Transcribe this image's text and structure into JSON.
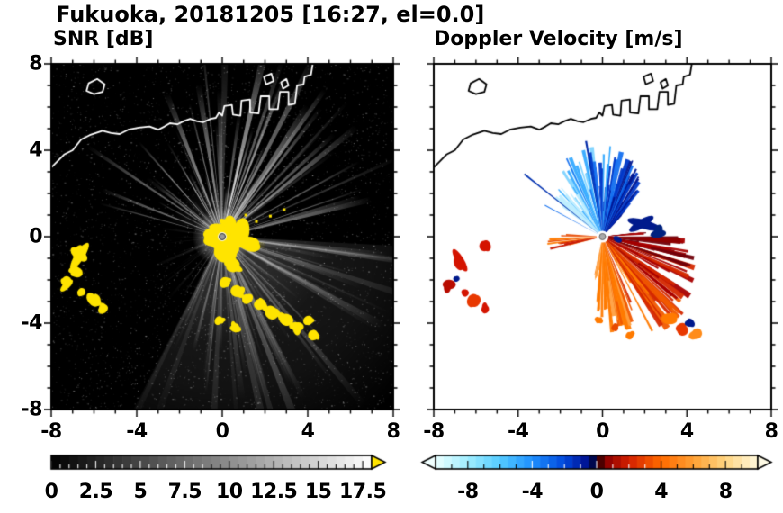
{
  "title": "Fukuoka, 20181205 [16:27, el=0.0]",
  "header": {
    "station": "Fukuoka",
    "date": "20181205",
    "time": "16:27",
    "elevation": "el=0.0"
  },
  "panels": [
    {
      "label": "SNR [dB]"
    },
    {
      "label": "Doppler Velocity [m/s]"
    }
  ],
  "chart_data": [
    {
      "type": "heatmap",
      "subtype": "radar-ppi",
      "title": "SNR [dB]",
      "xlim": [
        -8,
        8
      ],
      "ylim": [
        -8,
        8
      ],
      "xticks": [
        -8,
        -4,
        0,
        4,
        8
      ],
      "xtick_labels": [
        "-8",
        "-4",
        "0",
        "4",
        "8"
      ],
      "yticks": [
        8,
        4,
        0,
        -4,
        -8
      ],
      "ytick_labels": [
        "8",
        "4",
        "0",
        "-4",
        "-8"
      ],
      "minor_tick_step": 1,
      "background": "#000000",
      "colorbar": {
        "orientation": "horizontal",
        "min": 0,
        "max": 18,
        "segment_step": 0.5,
        "minor_tick_step": 0.5,
        "ticks": [
          0,
          2.5,
          5,
          7.5,
          10,
          12.5,
          15,
          17.5
        ],
        "tick_labels": [
          "0",
          "2.5",
          "5",
          "7.5",
          "10",
          "12.5",
          "15",
          "17.5"
        ],
        "over_arrow_color": "#ffe400"
      },
      "features": {
        "noise_density": 6500,
        "base_glow": [
          {
            "az": 0,
            "half": 70,
            "r": 2.6,
            "alpha": 0.1
          },
          {
            "az": 150,
            "half": 57,
            "r": 11,
            "alpha": 0.13
          },
          {
            "az": 150,
            "half": 57,
            "r": 5,
            "alpha": 0.1
          }
        ],
        "beam_fans": [
          {
            "az_min": -75,
            "az_max": 78,
            "count": 60,
            "r_min": 2.2,
            "r_max": 9.5,
            "alpha_min": 0.25,
            "alpha_max": 0.9
          },
          {
            "az_min": 95,
            "az_max": 208,
            "count": 85,
            "r_min": 2.5,
            "r_max": 11.5,
            "alpha_min": 0.06,
            "alpha_max": 0.4
          },
          {
            "az_min": 215,
            "az_max": 258,
            "count": 12,
            "r_min": 1.2,
            "r_max": 4.5,
            "alpha_min": 0.05,
            "alpha_max": 0.25
          },
          {
            "az_min": 262,
            "az_max": 292,
            "count": 8,
            "r_min": 1,
            "r_max": 3,
            "alpha_min": 0.05,
            "alpha_max": 0.3
          }
        ],
        "spikes": [
          {
            "az": 205,
            "half": 0.5,
            "r": 4.3,
            "alpha": 0.55
          },
          {
            "az": 214,
            "half": 0.45,
            "r": 3.2,
            "alpha": 0.4
          },
          {
            "az": 188,
            "half": 0.5,
            "r": 3.6,
            "alpha": 0.5
          },
          {
            "az": 180,
            "half": 0.4,
            "r": 2.6,
            "alpha": 0.45
          }
        ],
        "strong_echo_color": "#ffe400",
        "strong_echo_blobs": [
          [
            0.55,
            0,
            0.95,
            0.5
          ],
          [
            1.2,
            -0.3,
            0.55,
            0.3
          ],
          [
            0.25,
            -0.75,
            0.5,
            0.65
          ],
          [
            0.5,
            -1.35,
            0.3,
            0.55
          ],
          [
            -0.35,
            -0.25,
            0.5,
            0.35
          ],
          [
            -0.6,
            0.15,
            0.3,
            0.25
          ],
          [
            0.2,
            0.45,
            0.55,
            0.3
          ]
        ],
        "echo_streak": {
          "az": 102,
          "half": 4,
          "r": 2.1
        },
        "specks": [
          [
            1.6,
            0.7
          ],
          [
            2.25,
            0.95
          ],
          [
            2.9,
            1.25
          ],
          [
            1.1,
            1.0
          ]
        ],
        "clutter_blobs": [
          [
            -6.7,
            -1,
            0.3,
            0.7
          ],
          [
            -6.9,
            -1.6,
            0.25,
            0.3
          ],
          [
            -7.3,
            -2.15,
            0.25,
            0.4
          ],
          [
            -6.6,
            -2.55,
            0.22,
            0.18
          ],
          [
            -6.05,
            -2.9,
            0.4,
            0.25
          ],
          [
            -5.6,
            -3.3,
            0.28,
            0.22
          ],
          [
            0.15,
            -2.1,
            0.28,
            0.22
          ],
          [
            0.7,
            -2.5,
            0.32,
            0.26
          ],
          [
            1.2,
            -2.9,
            0.28,
            0.26
          ],
          [
            1.8,
            -3.1,
            0.38,
            0.26
          ],
          [
            2.4,
            -3.5,
            0.33,
            0.28
          ],
          [
            2.95,
            -3.9,
            0.42,
            0.32
          ],
          [
            3.5,
            -4.2,
            0.38,
            0.28
          ],
          [
            4.0,
            -3.9,
            0.28,
            0.22
          ],
          [
            4.35,
            -4.5,
            0.28,
            0.24
          ],
          [
            -0.1,
            -3.9,
            0.22,
            0.18
          ],
          [
            0.6,
            -4.2,
            0.26,
            0.2
          ]
        ],
        "center_marker_color": "#999999"
      }
    },
    {
      "type": "heatmap",
      "subtype": "radar-ppi",
      "title": "Doppler Velocity [m/s]",
      "xlim": [
        -8,
        8
      ],
      "ylim": [
        -8,
        8
      ],
      "xticks": [
        -8,
        -4,
        0,
        4,
        8
      ],
      "xtick_labels": [
        "-8",
        "-4",
        "0",
        "4",
        "8"
      ],
      "yticks": [
        8,
        4,
        0,
        -4,
        -8
      ],
      "ytick_labels": [
        "8",
        "4",
        "0",
        "-4",
        "-8"
      ],
      "minor_tick_step": 1,
      "background": "#ffffff",
      "colorbar": {
        "orientation": "horizontal",
        "min": -10,
        "max": 10,
        "segment_step": 0.5,
        "minor_tick_step": 1,
        "ticks": [
          -8,
          -4,
          0,
          4,
          8
        ],
        "tick_labels": [
          "-8",
          "-4",
          "0",
          "4",
          "8"
        ],
        "stops": [
          [
            -10,
            "#eaffff"
          ],
          [
            -8,
            "#a0eeff"
          ],
          [
            -6,
            "#55ccff"
          ],
          [
            -4,
            "#1e8fff"
          ],
          [
            -2,
            "#0048dd"
          ],
          [
            -0.6,
            "#001090"
          ],
          [
            -0.05,
            "#000428"
          ],
          [
            0.05,
            "#280000"
          ],
          [
            0.6,
            "#8c0000"
          ],
          [
            2,
            "#d42000"
          ],
          [
            4,
            "#ff6a00"
          ],
          [
            6,
            "#ffa033"
          ],
          [
            8,
            "#ffd480"
          ],
          [
            10,
            "#fff8dc"
          ]
        ],
        "under_arrow_color": "#f0ffff",
        "over_arrow_color": "#fffbe6"
      },
      "features": {
        "fans": [
          {
            "az_min": -55,
            "az_max": 42,
            "count": 115,
            "r_min": 0.8,
            "r_max": 4.4,
            "dark_bias": "span",
            "palette": [
              "#bfeeff",
              "#7fd4ff",
              "#35aaff",
              "#1470f0",
              "#0038c8",
              "#001690"
            ]
          },
          {
            "az_min": 84,
            "az_max": 192,
            "count": 135,
            "r_min": 1,
            "r_max": 5.3,
            "dark_bias": "span",
            "palette": [
              "#70000a",
              "#a80000",
              "#d42800",
              "#f05800",
              "#ff7a00",
              "#ffa040"
            ]
          },
          {
            "az_min": 253,
            "az_max": 274,
            "count": 12,
            "r_min": 1,
            "r_max": 2.8,
            "dark_bias": "none",
            "palette": [
              "#c81800",
              "#e84a00",
              "#ff7a00"
            ]
          }
        ],
        "spikes": [
          {
            "az": -52,
            "half": 0.5,
            "r": 4.7,
            "color": "#0030b0"
          },
          {
            "az": -62,
            "half": 0.4,
            "r": 3.1,
            "color": "#1470f0"
          },
          {
            "az": -10,
            "half": 0.6,
            "r": 4.5,
            "color": "#0028a8"
          },
          {
            "az": 5,
            "half": 0.5,
            "r": 4.2,
            "color": "#35aaff"
          },
          {
            "az": 22,
            "half": 0.5,
            "r": 3.8,
            "color": "#001690"
          },
          {
            "az": 93,
            "half": 2.2,
            "r": 3.7,
            "color": "#8c0000"
          }
        ],
        "blobs": [
          {
            "x": 2.0,
            "y": 0.5,
            "rx": 0.8,
            "ry": 0.32,
            "color": "#001a8c"
          },
          {
            "x": 2.7,
            "y": 0.2,
            "rx": 0.4,
            "ry": 0.22,
            "color": "#00227f"
          },
          {
            "x": 0.7,
            "y": -0.15,
            "rx": 0.22,
            "ry": 0.14,
            "color": "#001a8c"
          },
          {
            "x": -5.55,
            "y": -0.45,
            "rx": 0.3,
            "ry": 0.26,
            "color": "#d41400"
          },
          {
            "x": -6.85,
            "y": -1.3,
            "rx": 0.26,
            "ry": 0.6,
            "color": "#d41400"
          },
          {
            "x": -6.95,
            "y": -1.9,
            "rx": 0.16,
            "ry": 0.2,
            "color": "#001a8c"
          },
          {
            "x": -7.3,
            "y": -2.3,
            "rx": 0.24,
            "ry": 0.36,
            "color": "#b80c00"
          },
          {
            "x": -6.55,
            "y": -2.6,
            "rx": 0.2,
            "ry": 0.16,
            "color": "#d41400"
          },
          {
            "x": -6.05,
            "y": -2.9,
            "rx": 0.38,
            "ry": 0.24,
            "color": "#e83800"
          },
          {
            "x": -5.62,
            "y": -3.3,
            "rx": 0.26,
            "ry": 0.2,
            "color": "#d41400"
          },
          {
            "x": 3.1,
            "y": -3.85,
            "rx": 0.4,
            "ry": 0.3,
            "color": "#ff7a00"
          },
          {
            "x": 3.7,
            "y": -4.25,
            "rx": 0.3,
            "ry": 0.26,
            "color": "#e83800"
          },
          {
            "x": 4.15,
            "y": -3.95,
            "rx": 0.22,
            "ry": 0.18,
            "color": "#001a8c"
          },
          {
            "x": 4.45,
            "y": -4.55,
            "rx": 0.3,
            "ry": 0.24,
            "color": "#ff8c1a"
          },
          {
            "x": -0.1,
            "y": -3.9,
            "rx": 0.22,
            "ry": 0.18,
            "color": "#ff7a00"
          },
          {
            "x": 0.6,
            "y": -4.2,
            "rx": 0.26,
            "ry": 0.2,
            "color": "#e84a00"
          },
          {
            "x": 1.3,
            "y": -4.55,
            "rx": 0.22,
            "ry": 0.18,
            "color": "#ff7a00"
          }
        ],
        "center_marker_color": "#aaaaaa"
      }
    }
  ],
  "coastline": {
    "mainland": [
      [
        -8,
        3.2
      ],
      [
        -7.4,
        3.8
      ],
      [
        -7,
        4
      ],
      [
        -6.6,
        4.5
      ],
      [
        -6.2,
        4.7
      ],
      [
        -5.6,
        4.9
      ],
      [
        -5.2,
        4.8
      ],
      [
        -4.8,
        4.75
      ],
      [
        -4.4,
        4.95
      ],
      [
        -3.9,
        5.05
      ],
      [
        -3.4,
        5.1
      ],
      [
        -3,
        4.95
      ],
      [
        -2.7,
        5.1
      ],
      [
        -2.45,
        5.25
      ],
      [
        -2.1,
        5.2
      ],
      [
        -1.8,
        5.35
      ],
      [
        -1.5,
        5.45
      ],
      [
        -1.2,
        5.35
      ],
      [
        -0.9,
        5.3
      ],
      [
        -0.55,
        5.45
      ],
      [
        -0.3,
        5.5
      ],
      [
        -0.15,
        5.75
      ],
      [
        0,
        5.6
      ],
      [
        0.1,
        6.05
      ],
      [
        0.45,
        6.1
      ],
      [
        0.5,
        5.65
      ],
      [
        0.85,
        5.6
      ],
      [
        0.9,
        6.3
      ],
      [
        1.3,
        6.35
      ],
      [
        1.3,
        5.75
      ],
      [
        1.7,
        5.7
      ],
      [
        1.8,
        6.5
      ],
      [
        2.2,
        6.5
      ],
      [
        2.2,
        5.9
      ],
      [
        2.6,
        5.9
      ],
      [
        2.7,
        6.7
      ],
      [
        3.1,
        6.7
      ],
      [
        3.1,
        6.1
      ],
      [
        3.4,
        6.15
      ],
      [
        3.5,
        7
      ],
      [
        3.8,
        7.05
      ],
      [
        3.85,
        7.4
      ],
      [
        4.15,
        7.5
      ],
      [
        4.25,
        8.1
      ]
    ],
    "island": [
      [
        -6.35,
        6.75
      ],
      [
        -6,
        6.6
      ],
      [
        -5.6,
        6.7
      ],
      [
        -5.5,
        7.05
      ],
      [
        -5.85,
        7.3
      ],
      [
        -6.25,
        7.1
      ]
    ],
    "port_structures": [
      [
        [
          2.05,
          7.05
        ],
        [
          2.4,
          7.2
        ],
        [
          2.3,
          7.55
        ],
        [
          1.95,
          7.4
        ]
      ],
      [
        [
          2.85,
          6.85
        ],
        [
          3.1,
          7
        ],
        [
          3,
          7.3
        ],
        [
          2.75,
          7.15
        ]
      ]
    ]
  }
}
